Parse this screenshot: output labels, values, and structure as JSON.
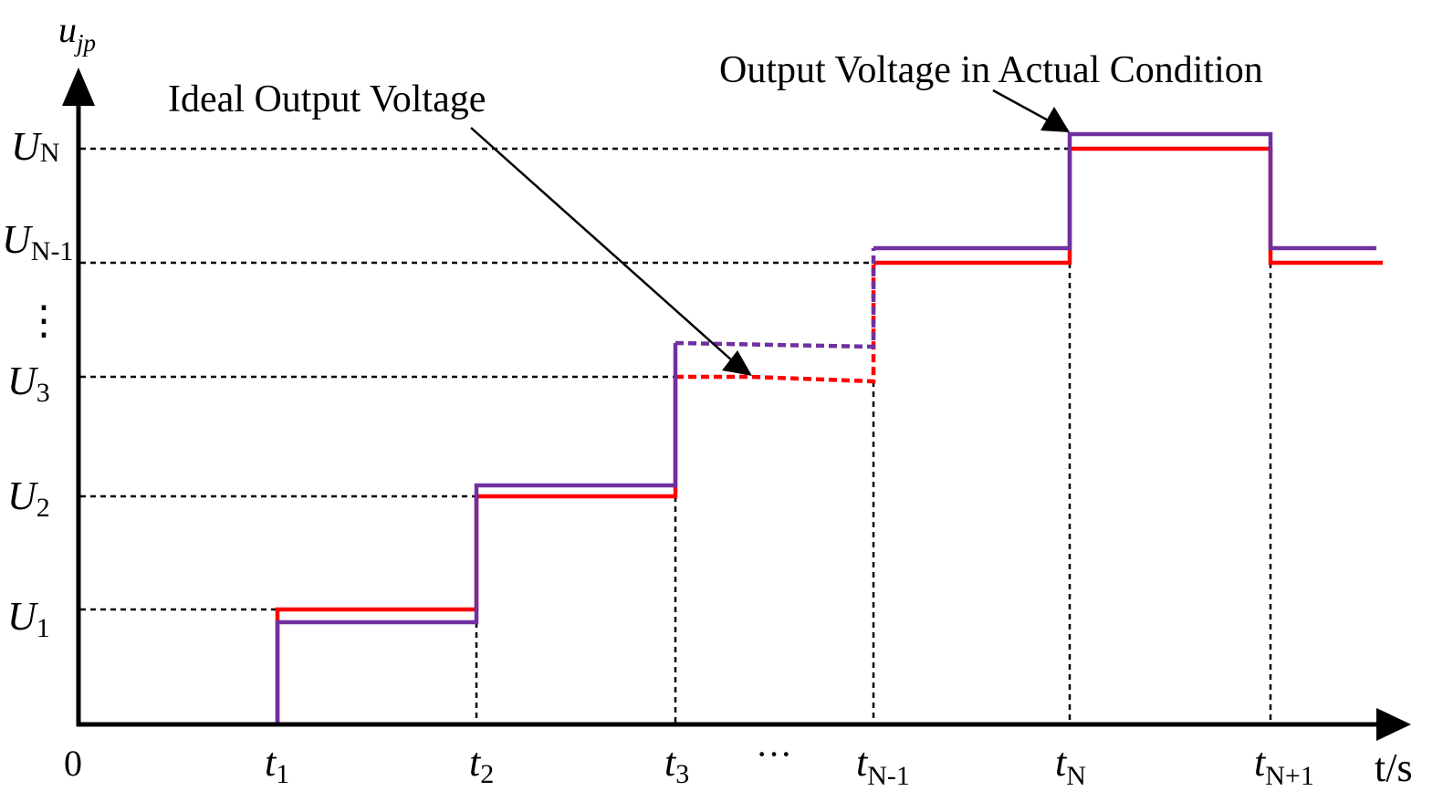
{
  "axes": {
    "y_label_main": "u",
    "y_label_sub": "jp",
    "x_label": "t/s",
    "origin_label": "0"
  },
  "y_ticks": [
    {
      "main": "U",
      "sub": "N"
    },
    {
      "main": "U",
      "sub": "N-1"
    },
    {
      "main": "U",
      "sub": "3"
    },
    {
      "main": "U",
      "sub": "2"
    },
    {
      "main": "U",
      "sub": "1"
    }
  ],
  "y_ellipsis": "⋮",
  "x_ticks": [
    {
      "main": "t",
      "sub": "1"
    },
    {
      "main": "t",
      "sub": "2"
    },
    {
      "main": "t",
      "sub": "3"
    },
    {
      "main": "t",
      "sub": "N-1"
    },
    {
      "main": "t",
      "sub": "N"
    },
    {
      "main": "t",
      "sub": "N+1"
    }
  ],
  "x_ellipsis": "···",
  "annotations": {
    "ideal": "Ideal Output Voltage",
    "actual": "Output Voltage in Actual Condition"
  },
  "colors": {
    "ideal": "#ff0000",
    "actual": "#7030a0",
    "axis": "#000000"
  }
}
